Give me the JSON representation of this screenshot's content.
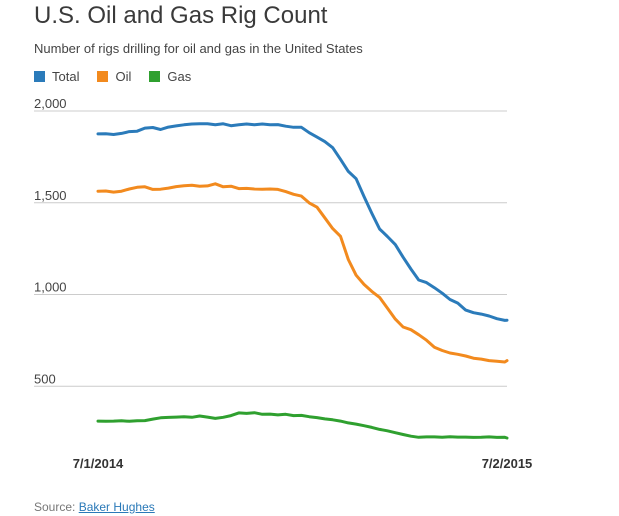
{
  "colors": {
    "total": "#2b7bba",
    "oil": "#f28a1e",
    "gas": "#2fa02f",
    "grid": "#cccccc"
  },
  "source": {
    "prefix": "Source:",
    "link_text": "Baker Hughes"
  },
  "chart_data": {
    "type": "line",
    "title": "U.S. Oil and Gas Rig Count",
    "subtitle": "Number of rigs drilling for oil and gas in the United States",
    "xlabel": "",
    "ylabel": "",
    "xlim": [
      "2014-07-01",
      "2015-07-02"
    ],
    "ylim": [
      0,
      2000
    ],
    "yticks": [
      {
        "value": 500,
        "label": "500"
      },
      {
        "value": 1000,
        "label": "1,000"
      },
      {
        "value": 1500,
        "label": "1,500"
      },
      {
        "value": 2000,
        "label": "2,000"
      }
    ],
    "xticks": [
      {
        "value": "2014-07-01",
        "label": "7/1/2014"
      },
      {
        "value": "2015-07-02",
        "label": "7/2/2015"
      }
    ],
    "grid": "horizontal",
    "legend_position": "top-left",
    "x": [
      "2014-07-01",
      "2014-07-08",
      "2014-07-15",
      "2014-07-22",
      "2014-07-29",
      "2014-08-05",
      "2014-08-12",
      "2014-08-19",
      "2014-08-26",
      "2014-09-02",
      "2014-09-09",
      "2014-09-16",
      "2014-09-23",
      "2014-09-30",
      "2014-10-07",
      "2014-10-14",
      "2014-10-21",
      "2014-10-28",
      "2014-11-04",
      "2014-11-11",
      "2014-11-18",
      "2014-11-25",
      "2014-12-02",
      "2014-12-09",
      "2014-12-16",
      "2014-12-23",
      "2014-12-30",
      "2015-01-06",
      "2015-01-13",
      "2015-01-20",
      "2015-01-27",
      "2015-02-03",
      "2015-02-10",
      "2015-02-17",
      "2015-02-24",
      "2015-03-03",
      "2015-03-10",
      "2015-03-17",
      "2015-03-24",
      "2015-03-31",
      "2015-04-07",
      "2015-04-14",
      "2015-04-21",
      "2015-04-28",
      "2015-05-05",
      "2015-05-12",
      "2015-05-19",
      "2015-05-26",
      "2015-06-02",
      "2015-06-09",
      "2015-06-16",
      "2015-06-23",
      "2015-06-30",
      "2015-07-02"
    ],
    "series": [
      {
        "name": "Total",
        "color": "#2b7bba",
        "values": [
          1875,
          1876,
          1872,
          1878,
          1888,
          1890,
          1907,
          1910,
          1899,
          1912,
          1919,
          1925,
          1929,
          1930,
          1930,
          1925,
          1930,
          1920,
          1925,
          1929,
          1925,
          1929,
          1925,
          1926,
          1917,
          1911,
          1911,
          1882,
          1858,
          1833,
          1800,
          1737,
          1671,
          1631,
          1534,
          1443,
          1357,
          1316,
          1272,
          1203,
          1139,
          1079,
          1065,
          1037,
          1007,
          973,
          953,
          915,
          901,
          893,
          883,
          868,
          859,
          860
        ]
      },
      {
        "name": "Oil",
        "color": "#f28a1e",
        "values": [
          1563,
          1564,
          1558,
          1563,
          1575,
          1584,
          1587,
          1573,
          1574,
          1580,
          1588,
          1593,
          1595,
          1590,
          1592,
          1603,
          1587,
          1590,
          1577,
          1578,
          1575,
          1574,
          1575,
          1573,
          1561,
          1546,
          1536,
          1499,
          1476,
          1418,
          1359,
          1317,
          1191,
          1105,
          1055,
          1017,
          984,
          926,
          866,
          823,
          808,
          781,
          751,
          713,
          695,
          681,
          674,
          665,
          653,
          648,
          640,
          636,
          632,
          640
        ]
      },
      {
        "name": "Gas",
        "color": "#2fa02f",
        "values": [
          310,
          309,
          310,
          312,
          309,
          312,
          313,
          321,
          328,
          330,
          332,
          334,
          331,
          338,
          332,
          325,
          331,
          340,
          355,
          352,
          356,
          347,
          348,
          344,
          347,
          340,
          341,
          334,
          329,
          322,
          317,
          310,
          300,
          294,
          285,
          276,
          265,
          257,
          247,
          237,
          228,
          222,
          224,
          224,
          222,
          225,
          223,
          223,
          221,
          222,
          224,
          221,
          222,
          218
        ]
      }
    ]
  }
}
